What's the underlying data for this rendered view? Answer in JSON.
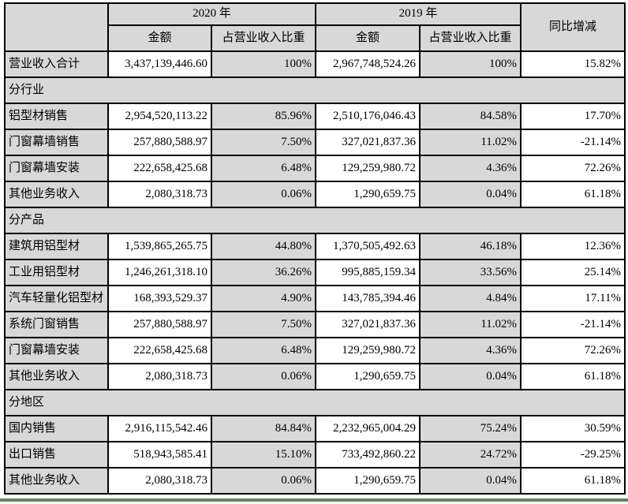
{
  "colors": {
    "grid_line": "#000000",
    "shaded_cell": "#d8d8d8",
    "bottom_rule_green": "#5a8a5e"
  },
  "table": {
    "header": {
      "year_2020": "2020 年",
      "year_2019": "2019 年",
      "yoy": "同比增减",
      "amount_2020": "金额",
      "share_2020": "占营业收入比重",
      "amount_2019": "金额",
      "share_2019": "占营业收入比重"
    },
    "rows": [
      {
        "type": "data",
        "label": "营业收入合计",
        "a2020": "3,437,139,446.60",
        "p2020": "100%",
        "a2019": "2,967,748,524.26",
        "p2019": "100%",
        "yoy": "15.82%"
      },
      {
        "type": "section",
        "label": "分行业"
      },
      {
        "type": "data",
        "label": "铝型材销售",
        "a2020": "2,954,520,113.22",
        "p2020": "85.96%",
        "a2019": "2,510,176,046.43",
        "p2019": "84.58%",
        "yoy": "17.70%"
      },
      {
        "type": "data",
        "label": "门窗幕墙销售",
        "a2020": "257,880,588.97",
        "p2020": "7.50%",
        "a2019": "327,021,837.36",
        "p2019": "11.02%",
        "yoy": "-21.14%"
      },
      {
        "type": "data",
        "label": "门窗幕墙安装",
        "a2020": "222,658,425.68",
        "p2020": "6.48%",
        "a2019": "129,259,980.72",
        "p2019": "4.36%",
        "yoy": "72.26%"
      },
      {
        "type": "data",
        "label": "其他业务收入",
        "a2020": "2,080,318.73",
        "p2020": "0.06%",
        "a2019": "1,290,659.75",
        "p2019": "0.04%",
        "yoy": "61.18%"
      },
      {
        "type": "section",
        "label": "分产品"
      },
      {
        "type": "data",
        "label": "建筑用铝型材",
        "a2020": "1,539,865,265.75",
        "p2020": "44.80%",
        "a2019": "1,370,505,492.63",
        "p2019": "46.18%",
        "yoy": "12.36%"
      },
      {
        "type": "data",
        "label": "工业用铝型材",
        "a2020": "1,246,261,318.10",
        "p2020": "36.26%",
        "a2019": "995,885,159.34",
        "p2019": "33.56%",
        "yoy": "25.14%"
      },
      {
        "type": "data",
        "label": "汽车轻量化铝型材",
        "a2020": "168,393,529.37",
        "p2020": "4.90%",
        "a2019": "143,785,394.46",
        "p2019": "4.84%",
        "yoy": "17.11%"
      },
      {
        "type": "data",
        "label": "系统门窗销售",
        "a2020": "257,880,588.97",
        "p2020": "7.50%",
        "a2019": "327,021,837.36",
        "p2019": "11.02%",
        "yoy": "-21.14%"
      },
      {
        "type": "data",
        "label": "门窗幕墙安装",
        "a2020": "222,658,425.68",
        "p2020": "6.48%",
        "a2019": "129,259,980.72",
        "p2019": "4.36%",
        "yoy": "72.26%"
      },
      {
        "type": "data",
        "label": "其他业务收入",
        "a2020": "2,080,318.73",
        "p2020": "0.06%",
        "a2019": "1,290,659.75",
        "p2019": "0.04%",
        "yoy": "61.18%"
      },
      {
        "type": "section",
        "label": "分地区"
      },
      {
        "type": "data",
        "label": "国内销售",
        "a2020": "2,916,115,542.46",
        "p2020": "84.84%",
        "a2019": "2,232,965,004.29",
        "p2019": "75.24%",
        "yoy": "30.59%"
      },
      {
        "type": "data",
        "label": "出口销售",
        "a2020": "518,943,585.41",
        "p2020": "15.10%",
        "a2019": "733,492,860.22",
        "p2019": "24.72%",
        "yoy": "-29.25%"
      },
      {
        "type": "data",
        "label": "其他业务收入",
        "a2020": "2,080,318.73",
        "p2020": "0.06%",
        "a2019": "1,290,659.75",
        "p2019": "0.04%",
        "yoy": "61.18%"
      }
    ]
  }
}
